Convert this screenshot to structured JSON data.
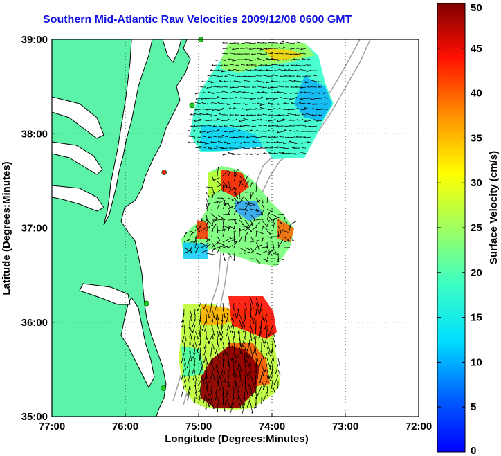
{
  "title": "Southern Mid-Atlantic Raw Velocities 2009/12/08 0600 GMT",
  "map": {
    "lon_range": [
      -77,
      -72
    ],
    "lat_range": [
      35,
      39
    ],
    "x_ticks": [
      "77:00",
      "76:00",
      "75:00",
      "74:00",
      "73:00",
      "72:00"
    ],
    "y_ticks": [
      "39:00",
      "38:00",
      "37:00",
      "36:00",
      "35:00"
    ],
    "xlabel": "Longitude (Degrees:Minutes)",
    "ylabel": "Latitude (Degrees:Minutes)",
    "grid": "dotted",
    "land_color": "#5cf2a8",
    "coast_color": "#000000",
    "station_color": "#22cc22",
    "station_highlight_color": "#ff2020"
  },
  "colorbar": {
    "label": "Surface Velocity (cm/s)",
    "ticks": [
      "50",
      "45",
      "40",
      "35",
      "30",
      "25",
      "20",
      "15",
      "10",
      "5",
      "0"
    ],
    "range": [
      0,
      50
    ],
    "colormap": "jet"
  },
  "stations": [
    {
      "lon": -74.97,
      "lat": 39.0
    },
    {
      "lon": -75.09,
      "lat": 38.3
    },
    {
      "lon": -75.47,
      "lat": 37.59
    },
    {
      "lon": -75.71,
      "lat": 36.2
    },
    {
      "lon": -75.48,
      "lat": 35.3
    }
  ],
  "velocity_regions": [
    {
      "name": "north-region",
      "level": "low-to-moderate",
      "dominant_direction": "west"
    },
    {
      "name": "central-region",
      "level": "mixed",
      "dominant_direction": "variable"
    },
    {
      "name": "south-region",
      "level": "high",
      "dominant_direction": "south"
    }
  ]
}
